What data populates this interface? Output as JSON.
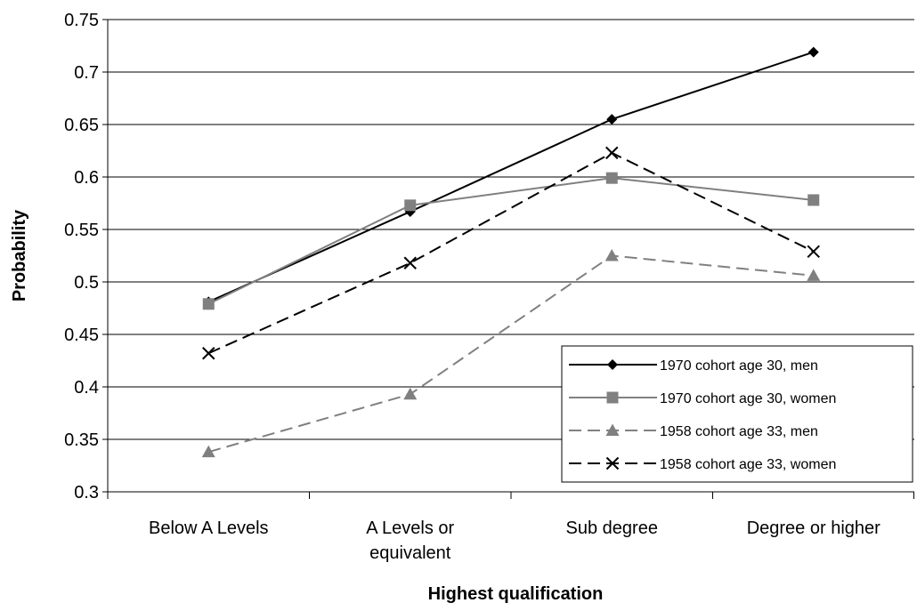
{
  "chart_data": {
    "type": "line",
    "categories": [
      [
        "Below A Levels"
      ],
      [
        "A Levels or",
        "equivalent"
      ],
      [
        "Sub degree"
      ],
      [
        "Degree or higher"
      ]
    ],
    "xlabel": "Highest qualification",
    "ylabel": "Probability",
    "ylim": [
      0.3,
      0.75
    ],
    "yticks": [
      "0.3",
      "0.35",
      "0.4",
      "0.45",
      "0.5",
      "0.55",
      "0.6",
      "0.65",
      "0.7",
      "0.75"
    ],
    "grid": true,
    "legend_position": "bottom-right",
    "series": [
      {
        "name": "1970 cohort age 30, men",
        "values": [
          0.481,
          0.567,
          0.655,
          0.719
        ],
        "color": "#000000",
        "dash": "solid",
        "marker": "diamond"
      },
      {
        "name": "1970 cohort age 30, women",
        "values": [
          0.479,
          0.573,
          0.599,
          0.578
        ],
        "color": "#808080",
        "dash": "solid",
        "marker": "square"
      },
      {
        "name": "1958 cohort age 33, men",
        "values": [
          0.338,
          0.393,
          0.525,
          0.506
        ],
        "color": "#808080",
        "dash": "dashed",
        "marker": "triangle"
      },
      {
        "name": "1958 cohort age 33, women",
        "values": [
          0.432,
          0.518,
          0.623,
          0.529
        ],
        "color": "#000000",
        "dash": "dashed",
        "marker": "x"
      }
    ]
  }
}
